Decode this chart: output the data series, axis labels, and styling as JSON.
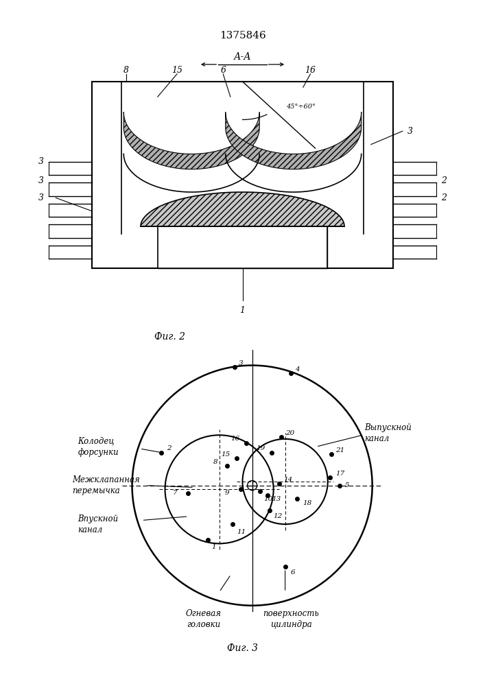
{
  "title": "1375846",
  "fig2_label": "Фиг. 2",
  "fig3_label": "Фиг. 3",
  "bg_color": "#ffffff"
}
